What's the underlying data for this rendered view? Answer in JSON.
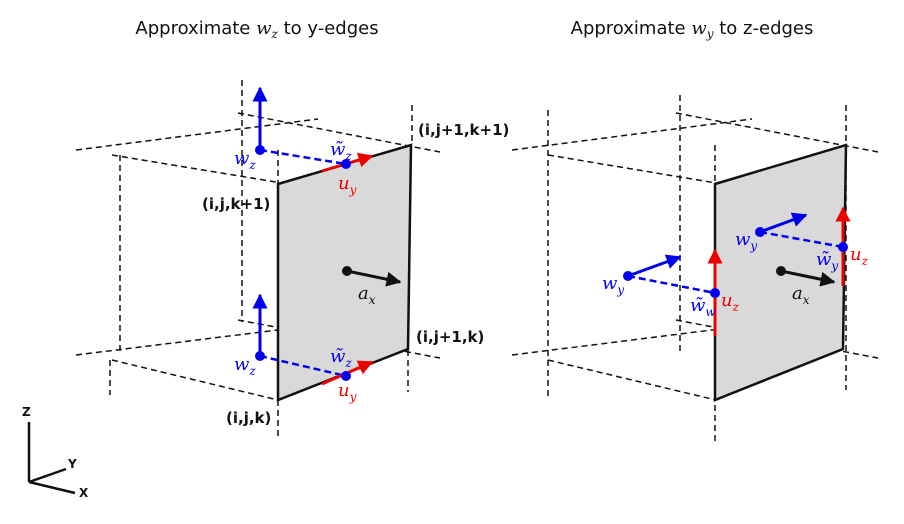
{
  "titles": {
    "left_prefix": "Approximate ",
    "left_var": "w",
    "left_sub": "z",
    "left_suffix": " to y-edges",
    "right_prefix": "Approximate ",
    "right_var": "w",
    "right_sub": "y",
    "right_suffix": " to z-edges"
  },
  "corners": {
    "top_right": "(i,j+1,k+1)",
    "top_left": "(i,j,k+1)",
    "bottom_right": "(i,j+1,k)",
    "bottom_left": "(i,j,k)"
  },
  "symbols": {
    "w": "w",
    "w_tilde": "w̃",
    "u": "u",
    "a": "a",
    "sub_z": "z",
    "sub_y": "y",
    "sub_x": "x",
    "sub_w": "w"
  },
  "axes": {
    "z": "Z",
    "y": "Y",
    "x": "X"
  },
  "colors": {
    "blue": "#0000ee",
    "red": "#ee0000",
    "black": "#111111",
    "face_fill": "#d9d9d9"
  }
}
